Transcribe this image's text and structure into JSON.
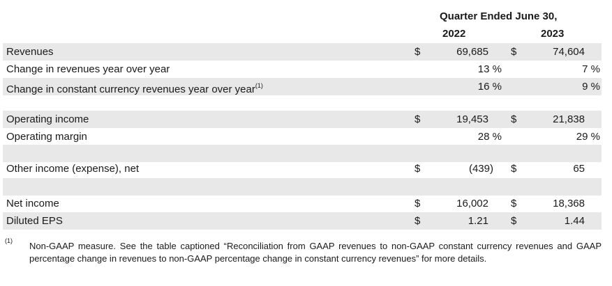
{
  "header": {
    "period": "Quarter Ended June 30,",
    "year_a": "2022",
    "year_b": "2023"
  },
  "rows": [
    {
      "label": "Revenues",
      "currency_a": "$",
      "value_a": "69,685",
      "currency_b": "$",
      "value_b": "74,604"
    },
    {
      "label": "Change in revenues year over year",
      "value_a": "13 %",
      "value_b": "7 %"
    },
    {
      "label": "Change in constant currency revenues year over year",
      "footnote_ref": "(1)",
      "value_a": "16 %",
      "value_b": "9 %"
    },
    {
      "label": "Operating income",
      "currency_a": "$",
      "value_a": "19,453",
      "currency_b": "$",
      "value_b": "21,838"
    },
    {
      "label": "Operating margin",
      "value_a": "28 %",
      "value_b": "29 %"
    },
    {
      "label": "Other income (expense), net",
      "currency_a": "$",
      "value_a": "(439)",
      "currency_b": "$",
      "value_b": "65"
    },
    {
      "label": "Net income",
      "currency_a": "$",
      "value_a": "16,002",
      "currency_b": "$",
      "value_b": "18,368"
    },
    {
      "label": "Diluted EPS",
      "currency_a": "$",
      "value_a": "1.21",
      "currency_b": "$",
      "value_b": "1.44"
    }
  ],
  "footnote": {
    "marker": "(1)",
    "text": "Non-GAAP measure. See the table captioned “Reconciliation from GAAP revenues to non-GAAP constant currency revenues and GAAP percentage change in revenues to non-GAAP percentage change in constant currency revenues” for more details."
  }
}
